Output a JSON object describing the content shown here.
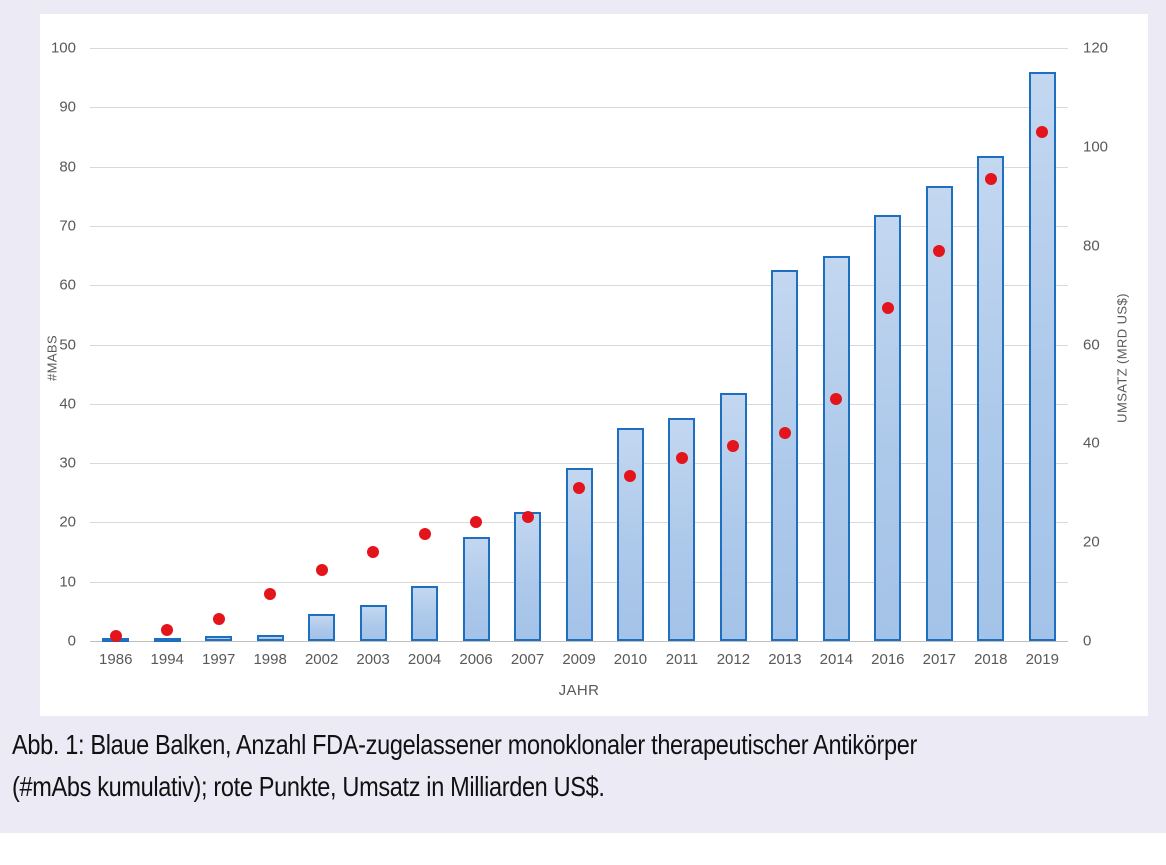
{
  "page": {
    "background": "#ffffff",
    "panel_background": "#eceaf4",
    "card_background": "#ffffff"
  },
  "caption": {
    "line1": "Abb. 1: Blaue Balken, Anzahl FDA-zugelassener monoklonaler therapeutischer Antikörper",
    "line2": "(#mAbs kumulativ); rote Punkte, Umsatz in Milliarden US$."
  },
  "chart_data": {
    "type": "combo",
    "categories": [
      "1986",
      "1994",
      "1997",
      "1998",
      "2002",
      "2003",
      "2004",
      "2006",
      "2007",
      "2009",
      "2010",
      "2011",
      "2012",
      "2013",
      "2014",
      "2016",
      "2017",
      "2018",
      "2019"
    ],
    "series": [
      {
        "name": "#mAbs kumulativ (FDA-zugelassen)",
        "type": "bar",
        "axis": "left",
        "values": [
          0.5,
          0.5,
          0.8,
          1,
          4.5,
          6,
          9.2,
          17.6,
          21.8,
          29.2,
          36,
          37.6,
          41.8,
          62.5,
          65,
          71.8,
          76.8,
          81.8,
          96
        ],
        "fill": "#adc9ea",
        "border": "#1f6fc0"
      },
      {
        "name": "Umsatz (Mrd US$)",
        "type": "scatter",
        "axis": "right",
        "values": [
          1,
          2.3,
          4.5,
          9.5,
          14.4,
          18,
          21.6,
          24,
          25,
          31,
          33.4,
          37,
          39.4,
          42,
          49,
          67.3,
          79,
          93.4,
          103
        ],
        "color": "#e3141c"
      }
    ],
    "xlabel": "JAHR",
    "ylabel_left": "#MABS",
    "ylabel_right": "UMSATZ (MRD US$)",
    "ylim_left": [
      0,
      100
    ],
    "ytick_step_left": 10,
    "ylim_right": [
      0,
      120
    ],
    "ytick_step_right": 20,
    "grid": true,
    "gridline_color": "#d9d9d9",
    "axisline_color": "#bfbfbf",
    "tick_color": "#595959"
  }
}
